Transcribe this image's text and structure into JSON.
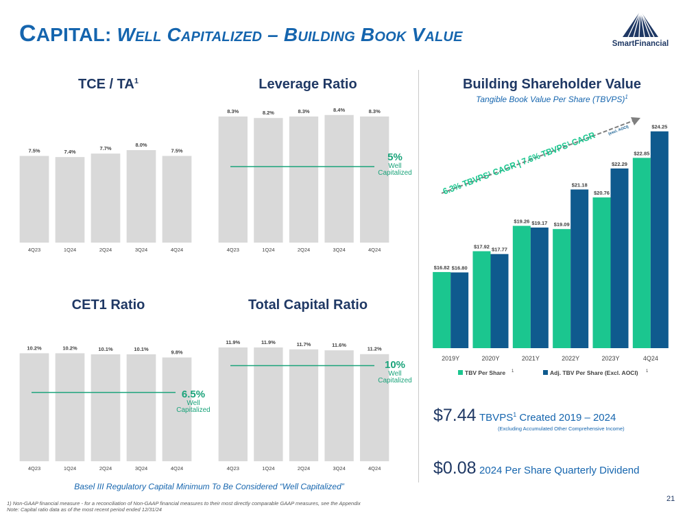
{
  "page": {
    "title_first_letter": "C",
    "title_rest": "APITAL:",
    "title_subtitle": "Well Capitalized – Building Book Value",
    "logo_text": "SmartFinancial",
    "page_number": "21",
    "basel_note": "Basel III Regulatory Capital Minimum To Be Considered “Well Capitalized”",
    "footnote_1": "1) Non-GAAP financial measure - for a reconciliation of Non-GAAP financial measures to their most directly comparable GAAP measures, see the Appendix",
    "footnote_2": "Note: Capital ratio data as of the most recent period ended 12/31/24",
    "colors": {
      "bar_gray": "#d9d9d9",
      "green": "#1bc68f",
      "blue": "#0f5a8e",
      "navy": "#1f3864",
      "accent": "#1565ae",
      "wc_line": "#1aa37a"
    }
  },
  "tce_title": "TCE / TA",
  "tce_title_sup": "1",
  "leverage_title": "Leverage Ratio",
  "cet1_title": "CET1 Ratio",
  "total_title": "Total Capital Ratio",
  "leverage_wc": {
    "pct": "5%",
    "label1": "Well",
    "label2": "Capitalized"
  },
  "cet1_wc": {
    "pct": "6.5%",
    "label1": "Well",
    "label2": "Capitalized"
  },
  "total_wc": {
    "pct": "10%",
    "label1": "Well",
    "label2": "Capitalized"
  },
  "bsv_title": "Building Shareholder Value",
  "bsv_subtitle": "Tangible Book Value Per Share (TBVPS)",
  "bsv_subtitle_sup": "1",
  "cagr_text": "6.3% TBVPS¹ CAGR | 7.6% TBVPS¹ CAGR",
  "cagr_small": "(excl. AOCI)",
  "stat1": {
    "value": "$7.44",
    "desc": "TBVPS",
    "sup": "1",
    "desc2": " Created 2019 – 2024",
    "note": "(Excluding Accumulated Other Comprehensive Income)"
  },
  "stat2": {
    "value": "$0.08",
    "desc": "2024 Per Share Quarterly Dividend"
  },
  "chart_data": [
    {
      "id": "tce",
      "type": "bar",
      "title": "TCE / TA",
      "categories": [
        "4Q23",
        "1Q24",
        "2Q24",
        "3Q24",
        "4Q24"
      ],
      "values": [
        7.5,
        7.4,
        7.7,
        8.0,
        7.5
      ],
      "labels": [
        "7.5%",
        "7.4%",
        "7.7%",
        "8.0%",
        "7.5%"
      ],
      "ylim": [
        0,
        11.5
      ]
    },
    {
      "id": "leverage",
      "type": "bar",
      "title": "Leverage Ratio",
      "categories": [
        "4Q23",
        "1Q24",
        "2Q24",
        "3Q24",
        "4Q24"
      ],
      "values": [
        8.3,
        8.2,
        8.3,
        8.4,
        8.3
      ],
      "labels": [
        "8.3%",
        "8.2%",
        "8.3%",
        "8.4%",
        "8.3%"
      ],
      "ylim": [
        0,
        8.75
      ],
      "threshold": 5
    },
    {
      "id": "cet1",
      "type": "bar",
      "title": "CET1 Ratio",
      "categories": [
        "4Q23",
        "1Q24",
        "2Q24",
        "3Q24",
        "4Q24"
      ],
      "values": [
        10.2,
        10.2,
        10.1,
        10.1,
        9.8
      ],
      "labels": [
        "10.2%",
        "10.2%",
        "10.1%",
        "10.1%",
        "9.8%"
      ],
      "ylim": [
        0,
        11.2
      ],
      "threshold": 6.5
    },
    {
      "id": "total",
      "type": "bar",
      "title": "Total Capital Ratio",
      "categories": [
        "4Q23",
        "1Q24",
        "2Q24",
        "3Q24",
        "4Q24"
      ],
      "values": [
        11.9,
        11.9,
        11.7,
        11.6,
        11.2
      ],
      "labels": [
        "11.9%",
        "11.9%",
        "11.7%",
        "11.6%",
        "11.2%"
      ],
      "ylim": [
        0,
        12.4
      ],
      "threshold": 10
    },
    {
      "id": "tbvps",
      "type": "bar",
      "title": "Building Shareholder Value",
      "categories": [
        "2019Y",
        "2020Y",
        "2021Y",
        "2022Y",
        "2023Y",
        "4Q24"
      ],
      "series": [
        {
          "name": "TBV Per Share",
          "values": [
            16.82,
            17.92,
            19.26,
            19.09,
            20.76,
            22.85
          ],
          "labels": [
            "$16.82",
            "$17.92",
            "$19.26",
            "$19.09",
            "$20.76",
            "$22.85"
          ]
        },
        {
          "name": "Adj. TBV Per Share (Excl. AOCI)",
          "values": [
            16.8,
            17.77,
            19.17,
            21.18,
            22.29,
            24.25
          ],
          "labels": [
            "$16.80",
            "$17.77",
            "$19.17",
            "$21.18",
            "$22.29",
            "$24.25"
          ]
        }
      ],
      "legend_sup": "1",
      "ylim": [
        12.8,
        24.6
      ],
      "legend": "bottom"
    }
  ]
}
